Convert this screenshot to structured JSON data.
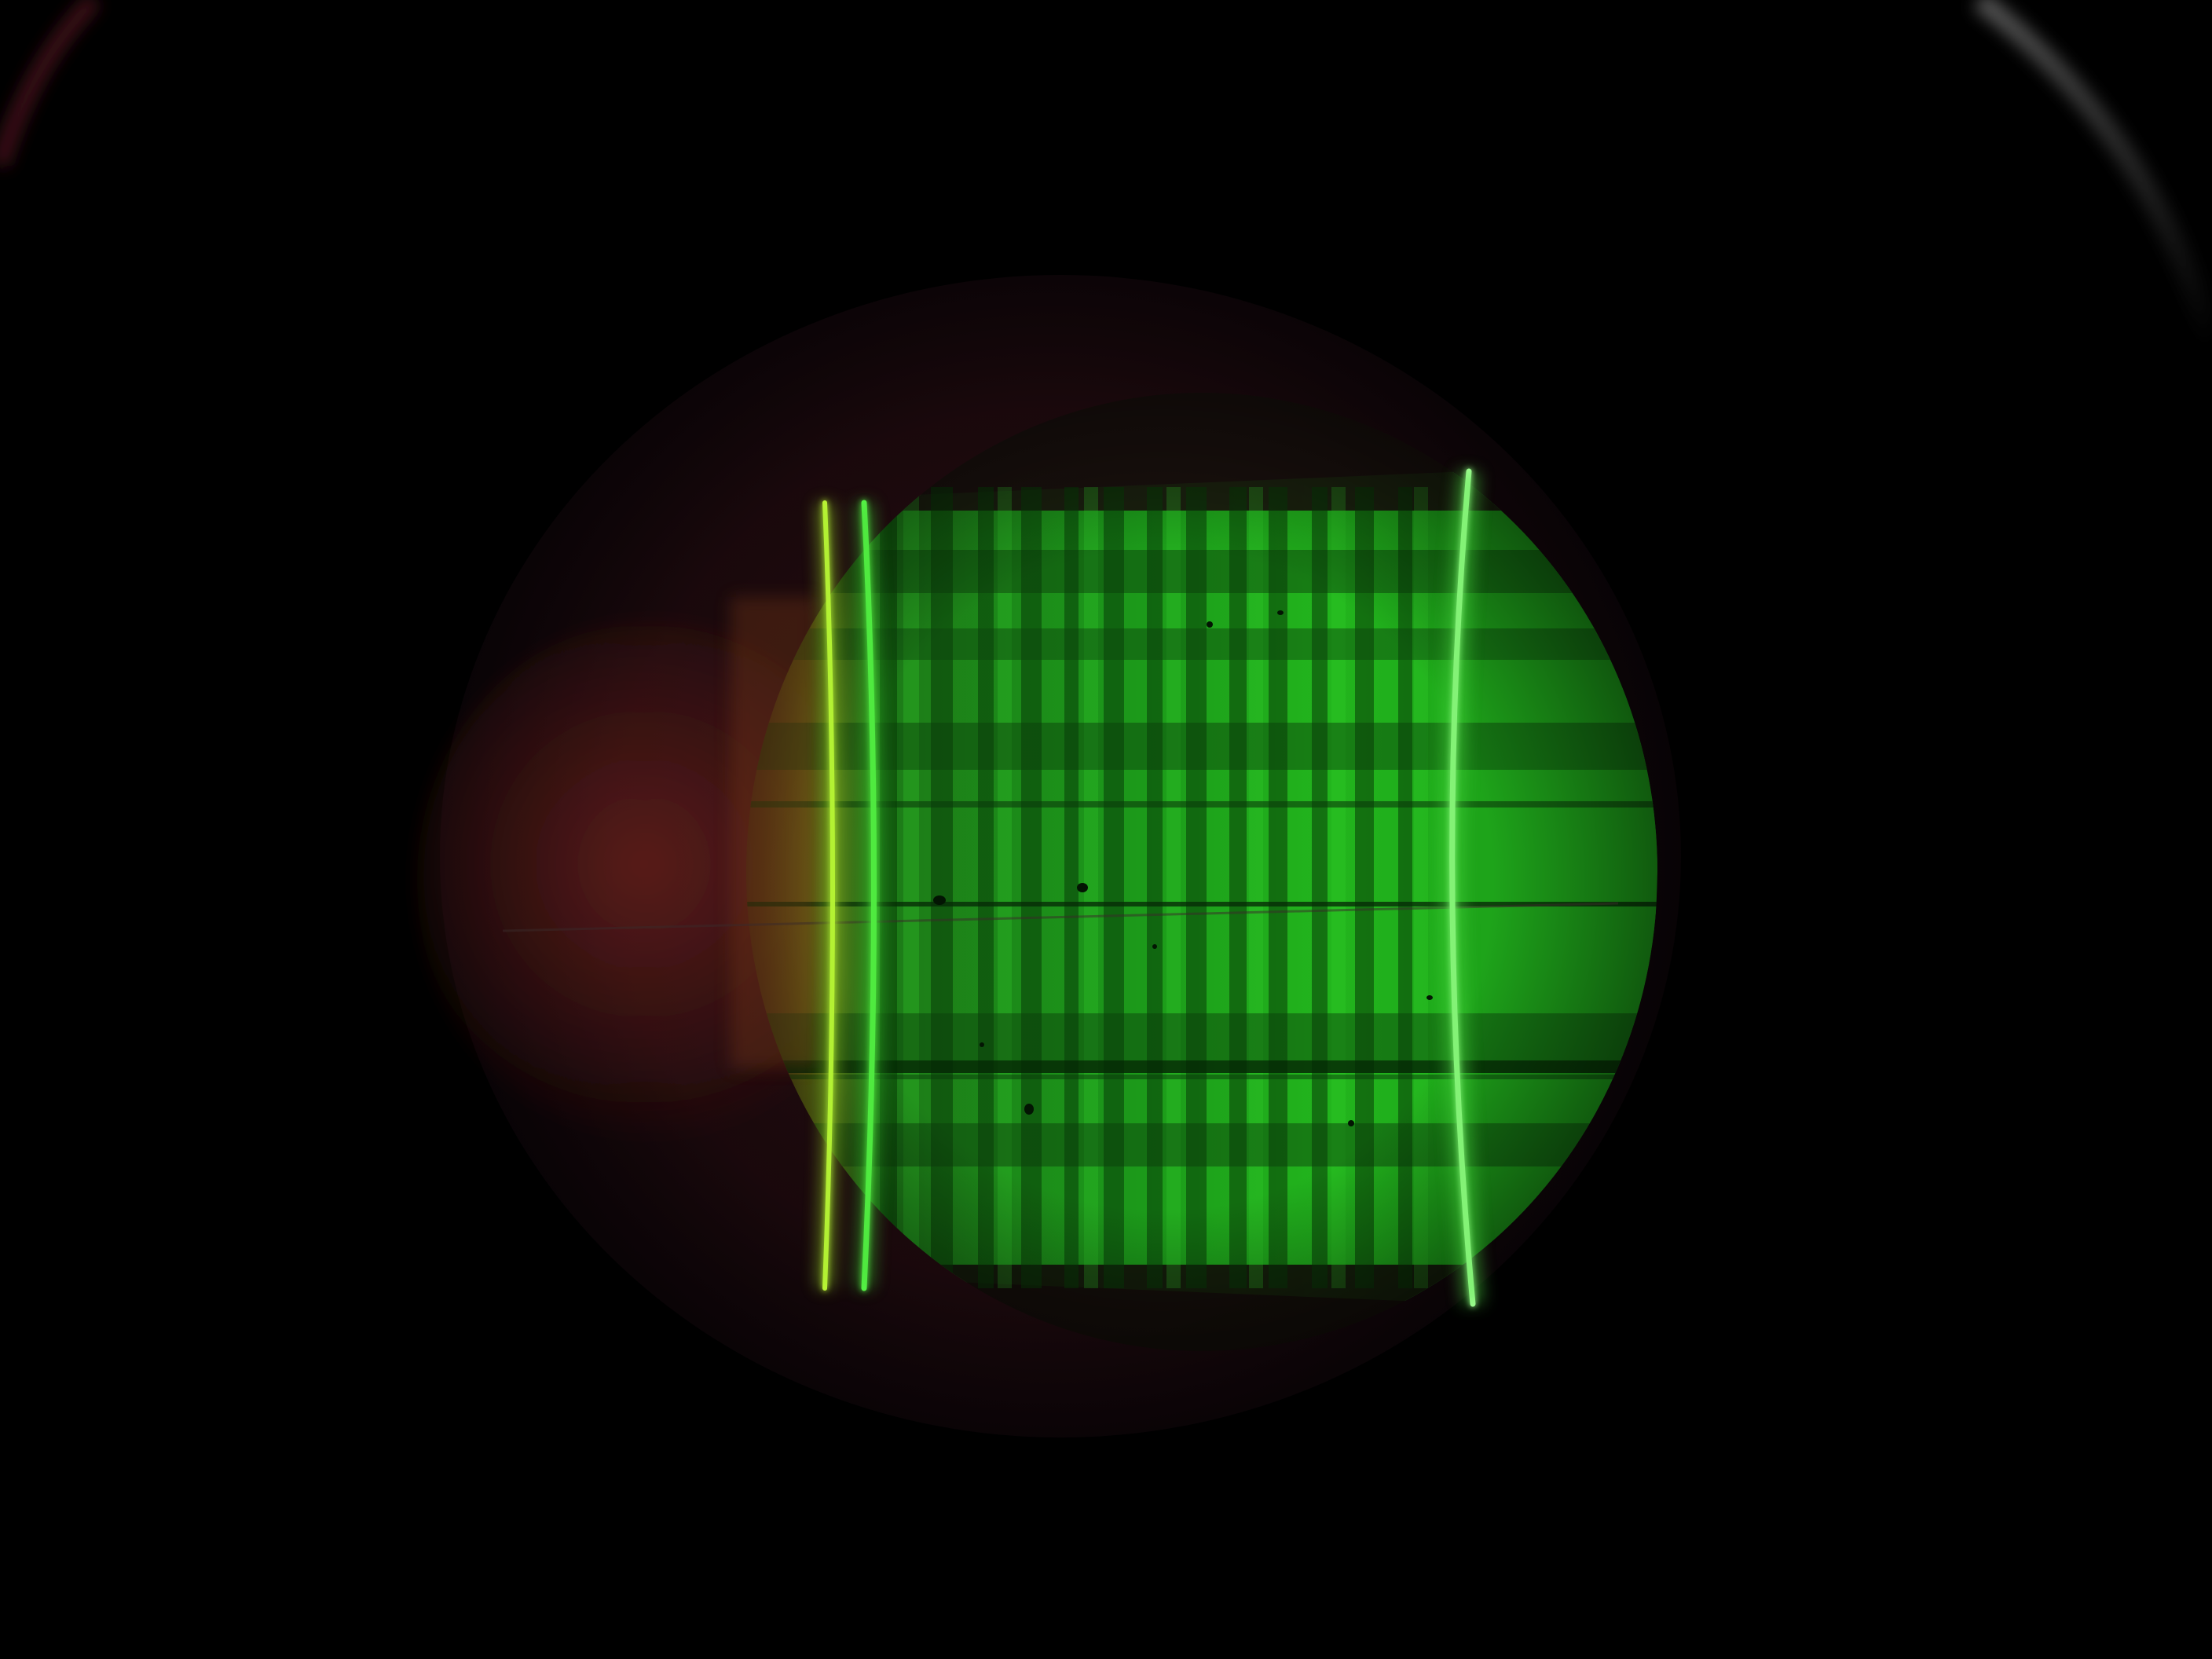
{
  "scene": {
    "kind": "photograph",
    "subject": "spectral-lines-in-eyepiece",
    "colors": {
      "background": "#000000",
      "field_glow": "#2a0f14",
      "field_glow_edge": "#0a0408",
      "band_dark": "#0f5a0f",
      "band_mid": "#1fa41c",
      "band_bright": "#22cc1e",
      "line_yellow_green": "#c4ff3a",
      "line_green": "#5cff4a",
      "line_bright_green": "#a8ff9a",
      "reddish_region": "#8a2a24",
      "rim_highlight": "#9a9a9a",
      "rim_red": "#8a2030"
    }
  }
}
